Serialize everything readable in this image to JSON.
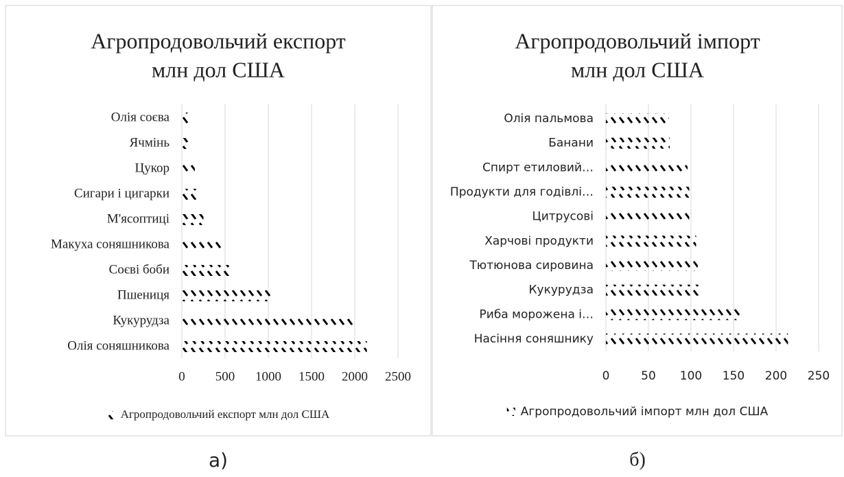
{
  "chart_data": [
    {
      "type": "bar",
      "orientation": "horizontal",
      "title": [
        "Агропродовольчий експорт",
        "млн дол США"
      ],
      "categories": [
        "Олія соняшникова",
        "Кукурудза",
        "Пшениця",
        "Соєві боби",
        "Макуха соняшникова",
        "М'ясоптиці",
        "Сигари і цигарки",
        "Цукор",
        "Ячмінь",
        "Олія соєва"
      ],
      "series": [
        {
          "name": "Агропродовольчий експорт млн дол США",
          "color": "#000000",
          "values": [
            2140,
            1990,
            1050,
            560,
            460,
            250,
            170,
            150,
            90,
            80
          ]
        }
      ],
      "xlim": [
        0,
        2500
      ],
      "xticks": [
        0,
        500,
        1000,
        1500,
        2000,
        2500
      ],
      "grid": true,
      "legend": "bottom"
    },
    {
      "type": "bar",
      "orientation": "horizontal",
      "title": [
        "Агропродовольчий імпорт",
        "млн дол США"
      ],
      "categories": [
        "Насіння соняшнику",
        "Риба морожена і…",
        "Кукурудза",
        "Тютюнова сировина",
        "Харчові продукти",
        "Цитрусові",
        "Продукти для годівлі…",
        "Спирт етиловий…",
        "Банани",
        "Олія пальмова"
      ],
      "series": [
        {
          "name": "Агропродовольчий імпорт млн дол США",
          "color": "#000000",
          "values": [
            214,
            159,
            109,
            108,
            106,
            98,
            98,
            96,
            75,
            74
          ]
        }
      ],
      "xlim": [
        0,
        250
      ],
      "xticks": [
        0,
        50,
        100,
        150,
        200,
        250
      ],
      "grid": true,
      "legend": "bottom"
    }
  ],
  "captions": [
    "а)",
    "б)"
  ]
}
